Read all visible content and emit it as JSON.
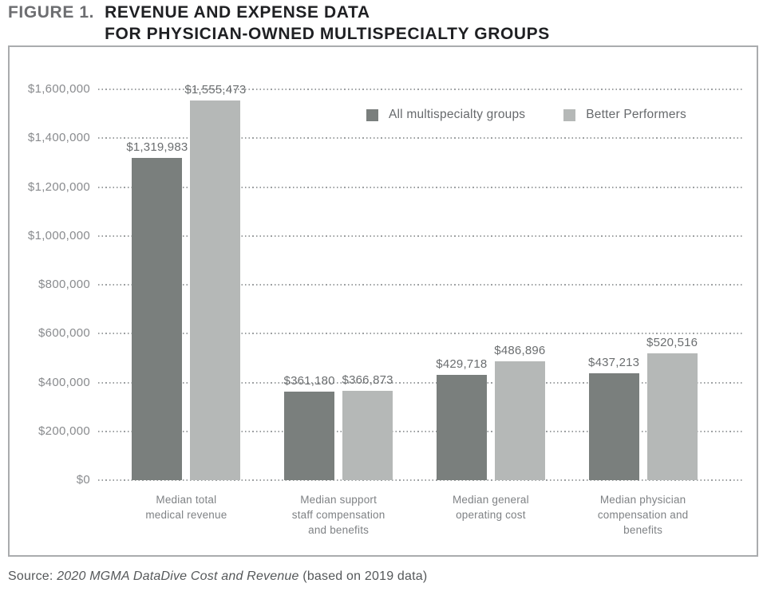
{
  "figure": {
    "label": "FIGURE 1.",
    "title_line1": "REVENUE AND EXPENSE DATA",
    "title_line2": "FOR PHYSICIAN-OWNED MULTISPECIALTY GROUPS"
  },
  "source": {
    "prefix": "Source: ",
    "citation": "2020 MGMA DataDive Cost and Revenue",
    "suffix": " (based on 2019 data)"
  },
  "chart_data": {
    "type": "bar",
    "title": "Revenue and expense data for physician-owned multispecialty groups",
    "categories": [
      "Median total\nmedical revenue",
      "Median support\nstaff compensation\nand benefits",
      "Median general\noperating cost",
      "Median physician\ncompensation and\nbenefits"
    ],
    "series": [
      {
        "name": "All multispecialty groups",
        "color": "#7a7f7d",
        "values": [
          1319983,
          361180,
          429718,
          437213
        ],
        "labels": [
          "$1,319,983",
          "$361,180",
          "$429,718",
          "$437,213"
        ]
      },
      {
        "name": "Better Performers",
        "color": "#b5b8b7",
        "values": [
          1555473,
          366873,
          486896,
          520516
        ],
        "labels": [
          "$1,555,473",
          "$366,873",
          "$486,896",
          "$520,516"
        ]
      }
    ],
    "xlabel": "",
    "ylabel": "",
    "ylim": [
      0,
      1600000
    ],
    "ytick_step": 200000,
    "ytick_labels": [
      "$0",
      "$200,000",
      "$400,000",
      "$600,000",
      "$800,000",
      "$1,000,000",
      "$1,200,000",
      "$1,400,000",
      "$1,600,000"
    ],
    "grid": "horizontal-dotted",
    "legend_position": "top-center"
  }
}
